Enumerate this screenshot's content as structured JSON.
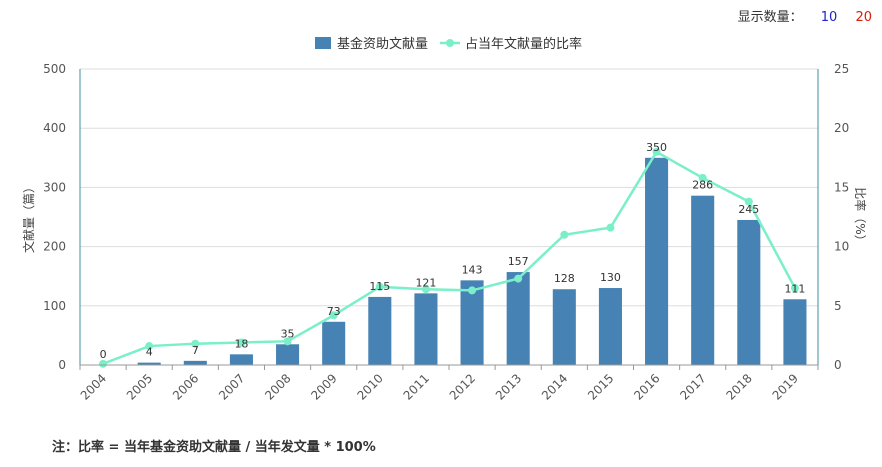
{
  "controls": {
    "display_count_label": "显示数量：",
    "options": [
      "10",
      "20"
    ],
    "colors": {
      "option_10": "#2222cc",
      "option_20": "#d81e06"
    }
  },
  "footnote": "注：比率 = 当年基金资助文献量 / 当年发文量 * 100%",
  "chart_data": {
    "type": "bar",
    "categories": [
      "2004",
      "2005",
      "2006",
      "2007",
      "2008",
      "2009",
      "2010",
      "2011",
      "2012",
      "2013",
      "2014",
      "2015",
      "2016",
      "2017",
      "2018",
      "2019"
    ],
    "series": [
      {
        "name": "基金资助文献量",
        "type": "bar",
        "axis": "left",
        "color": "#4682b4",
        "values": [
          0,
          4,
          7,
          18,
          35,
          73,
          115,
          121,
          143,
          157,
          128,
          130,
          350,
          286,
          245,
          111
        ]
      },
      {
        "name": "占当年文献量的比率",
        "type": "line",
        "axis": "right",
        "color": "#7aefc9",
        "values": [
          0.1,
          1.6,
          1.8,
          1.9,
          2.0,
          4.2,
          6.6,
          6.4,
          6.3,
          7.3,
          11.0,
          11.6,
          18.0,
          15.8,
          13.8,
          6.5
        ]
      }
    ],
    "ylabel": "文献量（篇）",
    "y2label": "比率（%）",
    "ylim": [
      0,
      500
    ],
    "y2lim": [
      0,
      25
    ],
    "yticks": [
      0,
      100,
      200,
      300,
      400,
      500
    ],
    "y2ticks": [
      0,
      5,
      10,
      15,
      20,
      25
    ],
    "grid": true,
    "legend_position": "top-center"
  }
}
